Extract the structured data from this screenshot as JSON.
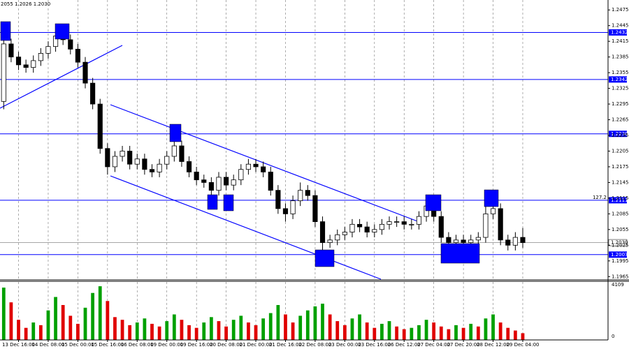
{
  "chart_data": {
    "type": "candlestick",
    "title": "2055 1.2026 1.2030",
    "annotation": "127.2",
    "xlim": [
      -0.5,
      81.5
    ],
    "xticks": [
      {
        "value": 2,
        "label": "13 Dec 16:00"
      },
      {
        "value": 6,
        "label": "14 Dec 08:00"
      },
      {
        "value": 10,
        "label": "15 Dec 00:00"
      },
      {
        "value": 14,
        "label": "15 Dec 16:00"
      },
      {
        "value": 18,
        "label": "16 Dec 08:00"
      },
      {
        "value": 22,
        "label": "19 Dec 00:00"
      },
      {
        "value": 26,
        "label": "19 Dec 16:00"
      },
      {
        "value": 30,
        "label": "20 Dec 08:00"
      },
      {
        "value": 34,
        "label": "21 Dec 00:00"
      },
      {
        "value": 38,
        "label": "21 Dec 16:00"
      },
      {
        "value": 42,
        "label": "22 Dec 08:00"
      },
      {
        "value": 46,
        "label": "23 Dec 00:00"
      },
      {
        "value": 50,
        "label": "23 Dec 16:00"
      },
      {
        "value": 54,
        "label": "26 Dec 12:00"
      },
      {
        "value": 58,
        "label": "27 Dec 04:00"
      },
      {
        "value": 62,
        "label": "27 Dec 20:00"
      },
      {
        "value": 66,
        "label": "28 Dec 12:00"
      },
      {
        "value": 70,
        "label": "29 Dec 04:00"
      }
    ],
    "ylim": [
      1.196,
      1.2494
    ],
    "yticks": [
      1.2475,
      1.2445,
      1.2415,
      1.2385,
      1.2355,
      1.2325,
      1.2295,
      1.2265,
      1.2235,
      1.2205,
      1.2175,
      1.2145,
      1.2115,
      1.2085,
      1.2055,
      1.2025,
      1.1995,
      1.1965
    ],
    "levels": [
      1.2432,
      1.2342,
      1.2238,
      1.2111,
      1.2007
    ],
    "level_color": "#0000ff",
    "current_price": {
      "value": 1.203,
      "label": "1.2030"
    },
    "open": [
      1.23,
      1.241,
      1.2385,
      1.237,
      1.2365,
      1.2378,
      1.2392,
      1.2405,
      1.2425,
      1.2418,
      1.24,
      1.2375,
      1.2335,
      1.2295,
      1.221,
      1.2175,
      1.2195,
      1.2205,
      1.218,
      1.219,
      1.217,
      1.2165,
      1.218,
      1.2195,
      1.2215,
      1.2185,
      1.2165,
      1.215,
      1.2145,
      1.213,
      1.2155,
      1.214,
      1.215,
      1.217,
      1.218,
      1.2175,
      1.2165,
      1.213,
      1.2095,
      1.2085,
      1.211,
      1.213,
      1.212,
      1.207,
      1.203,
      1.2035,
      1.2045,
      1.205,
      1.2065,
      1.206,
      1.205,
      1.2055,
      1.2065,
      1.207,
      1.207,
      1.2065,
      1.2065,
      1.208,
      1.21,
      1.208,
      1.204,
      1.203,
      1.2035,
      1.203,
      1.2035,
      1.204,
      1.2085,
      1.2095,
      1.2035,
      1.2025,
      1.204
    ],
    "high": [
      1.2445,
      1.242,
      1.2395,
      1.238,
      1.2388,
      1.2402,
      1.2415,
      1.244,
      1.2435,
      1.2428,
      1.241,
      1.2385,
      1.2345,
      1.2305,
      1.222,
      1.2205,
      1.2215,
      1.2215,
      1.22,
      1.22,
      1.218,
      1.219,
      1.2205,
      1.223,
      1.2225,
      1.2195,
      1.2175,
      1.216,
      1.2155,
      1.2165,
      1.2165,
      1.216,
      1.218,
      1.219,
      1.219,
      1.2185,
      1.2175,
      1.214,
      1.2105,
      1.212,
      1.2145,
      1.214,
      1.213,
      1.208,
      1.2045,
      1.2055,
      1.206,
      1.2075,
      1.2075,
      1.207,
      1.2065,
      1.2075,
      1.208,
      1.208,
      1.208,
      1.2075,
      1.209,
      1.2115,
      1.211,
      1.209,
      1.205,
      1.2045,
      1.2045,
      1.2045,
      1.205,
      1.2115,
      1.211,
      1.2105,
      1.2045,
      1.205,
      1.2058
    ],
    "low": [
      1.2285,
      1.2375,
      1.236,
      1.2355,
      1.2355,
      1.2368,
      1.2382,
      1.2395,
      1.2408,
      1.239,
      1.2365,
      1.2325,
      1.2285,
      1.22,
      1.216,
      1.2165,
      1.2185,
      1.217,
      1.217,
      1.216,
      1.2155,
      1.2155,
      1.217,
      1.2185,
      1.2175,
      1.2155,
      1.214,
      1.2135,
      1.212,
      1.212,
      1.213,
      1.213,
      1.214,
      1.216,
      1.2165,
      1.2155,
      1.212,
      1.2085,
      1.207,
      1.2075,
      1.21,
      1.211,
      1.206,
      1.2015,
      1.202,
      1.2025,
      1.2035,
      1.204,
      1.205,
      1.204,
      1.204,
      1.2045,
      1.2055,
      1.206,
      1.2055,
      1.2055,
      1.2055,
      1.207,
      1.207,
      1.203,
      1.202,
      1.202,
      1.202,
      1.202,
      1.2025,
      1.203,
      1.2075,
      1.2025,
      1.2015,
      1.2015,
      1.202
    ],
    "close": [
      1.241,
      1.2385,
      1.237,
      1.2365,
      1.2378,
      1.2392,
      1.2405,
      1.2425,
      1.2418,
      1.24,
      1.2375,
      1.2335,
      1.2295,
      1.221,
      1.2175,
      1.2195,
      1.2205,
      1.218,
      1.219,
      1.217,
      1.2165,
      1.218,
      1.2195,
      1.2215,
      1.2185,
      1.2165,
      1.215,
      1.2145,
      1.213,
      1.2155,
      1.214,
      1.215,
      1.217,
      1.218,
      1.2175,
      1.2165,
      1.213,
      1.2095,
      1.2085,
      1.211,
      1.213,
      1.212,
      1.207,
      1.203,
      1.2035,
      1.2045,
      1.205,
      1.2065,
      1.206,
      1.205,
      1.2055,
      1.2065,
      1.207,
      1.207,
      1.2065,
      1.2065,
      1.208,
      1.21,
      1.208,
      1.204,
      1.203,
      1.2035,
      1.203,
      1.2035,
      1.204,
      1.2085,
      1.2095,
      1.2035,
      1.2025,
      1.204,
      1.203
    ],
    "volume": [
      3900,
      2800,
      1500,
      900,
      1300,
      1100,
      2200,
      3200,
      2600,
      1800,
      1200,
      2400,
      3500,
      4000,
      2900,
      1700,
      1500,
      1100,
      1300,
      1600,
      1200,
      1000,
      1400,
      1900,
      1500,
      1100,
      900,
      1300,
      1700,
      1400,
      1000,
      1500,
      1800,
      1300,
      1100,
      1600,
      2000,
      2600,
      1900,
      1300,
      1800,
      2200,
      2500,
      2700,
      1900,
      1400,
      1100,
      1600,
      1900,
      1300,
      900,
      1200,
      1400,
      1000,
      800,
      900,
      1100,
      1500,
      1300,
      1000,
      800,
      1100,
      900,
      1200,
      1000,
      1600,
      1900,
      1300,
      900,
      700,
      500
    ],
    "volume_ylim": [
      0,
      4109
    ],
    "volume_yticks": [
      0,
      4109
    ],
    "volume_up_color": "#00a000",
    "volume_down_color": "#e00000"
  }
}
